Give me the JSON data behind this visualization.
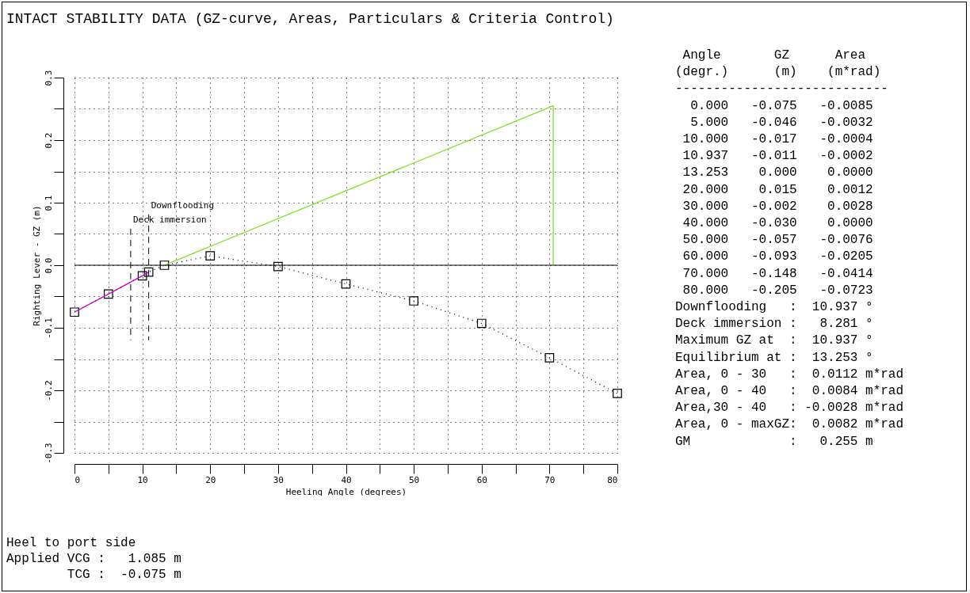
{
  "chart_data": {
    "type": "line",
    "title": "INTACT STABILITY DATA (GZ-curve, Areas, Particulars & Criteria Control)",
    "xlabel": "Heeling Angle (degrees)",
    "ylabel": "Righting Lever - GZ (m)",
    "xlim": [
      0,
      80
    ],
    "ylim": [
      -0.3,
      0.3
    ],
    "xticks": [
      0,
      {
        "value": 5,
        "label": null
      },
      10,
      {
        "value": 15,
        "label": null
      },
      20,
      {
        "value": 25,
        "label": null
      },
      30,
      {
        "value": 35,
        "label": null
      },
      40,
      {
        "value": 45,
        "label": null
      },
      50,
      {
        "value": 55,
        "label": null
      },
      60,
      {
        "value": 65,
        "label": null
      },
      70,
      {
        "value": 75,
        "label": null
      },
      80
    ],
    "yticks": [
      -0.3,
      {
        "value": -0.25,
        "label": null
      },
      -0.2,
      {
        "value": -0.15,
        "label": null
      },
      -0.1,
      {
        "value": -0.05,
        "label": null
      },
      {
        "value": 0,
        "label": "0.0"
      },
      {
        "value": 0.05,
        "label": null
      },
      0.1,
      {
        "value": 0.15,
        "label": null
      },
      0.2,
      {
        "value": 0.25,
        "label": null
      },
      0.3
    ],
    "grid": true,
    "series": [
      {
        "color": "#000000",
        "line_style": "dotted",
        "marker": "square",
        "x": [
          0,
          5,
          10,
          10.937,
          13.253,
          20,
          30,
          40,
          50,
          60,
          70,
          80
        ],
        "values": [
          -0.075,
          -0.046,
          -0.017,
          -0.011,
          0,
          0.015,
          -0.002,
          -0.03,
          -0.057,
          -0.093,
          -0.148,
          -0.205
        ]
      },
      {
        "color": "#cc00cc",
        "line_style": "solid",
        "marker": "none",
        "x": [
          0,
          5,
          10,
          10.937
        ],
        "values": [
          -0.075,
          -0.046,
          -0.017,
          -0.011
        ]
      },
      {
        "color": "#80e020",
        "line_style": "solid",
        "marker": "none",
        "x": [
          13.253,
          70.55,
          70.55
        ],
        "values": [
          0,
          0.255,
          0
        ]
      }
    ],
    "ref_lines": [
      {
        "axis": "y",
        "value": 0,
        "label": null,
        "color": "#000000",
        "line_style": "solid"
      },
      {
        "axis": "x",
        "value": 8.281,
        "label": "Deck immersion",
        "color": "#000000",
        "line_style": "dashed"
      },
      {
        "axis": "x",
        "value": 10.937,
        "label": "Downflooding",
        "color": "#000000",
        "line_style": "dashed"
      }
    ],
    "annotations": [
      " Angle       GZ      Area",
      "(degr.)      (m)    (m*rad)",
      "----------------------------",
      "  0.000   -0.075   -0.0085",
      "  5.000   -0.046   -0.0032",
      " 10.000   -0.017   -0.0004",
      " 10.937   -0.011   -0.0002",
      " 13.253    0.000    0.0000",
      " 20.000    0.015    0.0012",
      " 30.000   -0.002    0.0028",
      " 40.000   -0.030    0.0000",
      " 50.000   -0.057   -0.0076",
      " 60.000   -0.093   -0.0205",
      " 70.000   -0.148   -0.0414",
      " 80.000   -0.205   -0.0723",
      "Downflooding   :  10.937 °",
      "Deck immersion :   8.281 °",
      "Maximum GZ at  :  10.937 °",
      "Equilibrium at :  13.253 °",
      "Area, 0 - 30   :  0.0112 m*rad",
      "Area, 0 - 40   :  0.0084 m*rad",
      "Area,30 - 40   : -0.0028 m*rad",
      "Area, 0 - maxGZ:  0.0082 m*rad",
      "GM             :   0.255 m",
      "Heel to port side",
      "Applied VCG :   1.085 m",
      "        TCG :  -0.075 m"
    ]
  }
}
